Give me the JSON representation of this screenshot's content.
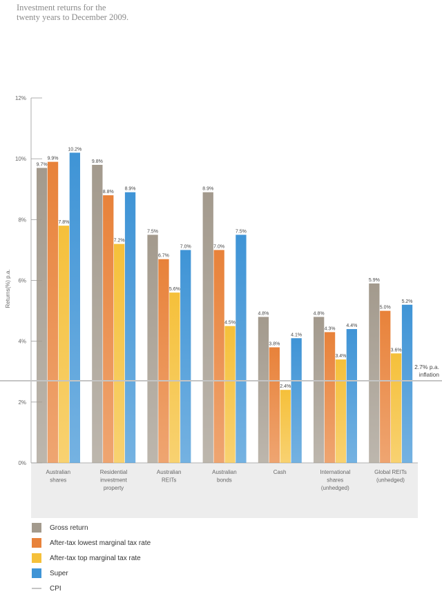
{
  "title": {
    "line1": "Investment returns for the",
    "line2": "twenty years to December 2009."
  },
  "chart_data": {
    "type": "bar",
    "ylabel": "Returns(%) p.a.",
    "ylim": [
      0,
      12
    ],
    "yticks": [
      "0%",
      "2%",
      "4%",
      "6%",
      "8%",
      "10%",
      "12%"
    ],
    "ytick_values": [
      0,
      2,
      4,
      6,
      8,
      10,
      12
    ],
    "categories": [
      [
        "Australian",
        "shares"
      ],
      [
        "Residential",
        "investment",
        "property"
      ],
      [
        "Australian",
        "REITs"
      ],
      [
        "Australian",
        "bonds"
      ],
      [
        "Cash"
      ],
      [
        "International",
        "shares",
        "(unhedged)"
      ],
      [
        "Global REITs",
        "(unhedged)"
      ]
    ],
    "series": [
      {
        "name": "Gross return",
        "color": "#a39a8d",
        "values": [
          9.7,
          9.8,
          7.5,
          8.9,
          4.8,
          4.8,
          5.9
        ],
        "labels": [
          "9.7%",
          "9.8%",
          "7.5%",
          "8.9%",
          "4.8%",
          "4.8%",
          "5.9%"
        ]
      },
      {
        "name": "After-tax lowest marginal tax rate",
        "color": "#e8823a",
        "values": [
          9.9,
          8.8,
          6.7,
          7.0,
          3.8,
          4.3,
          5.0
        ],
        "labels": [
          "9.9%",
          "8.8%",
          "6.7%",
          "7.0%",
          "3.8%",
          "4.3%",
          "5.0%"
        ]
      },
      {
        "name": "After-tax top marginal tax rate",
        "color": "#f5c03a",
        "values": [
          7.8,
          7.2,
          5.6,
          4.5,
          2.4,
          3.4,
          3.6
        ],
        "labels": [
          "7.8%",
          "7.2%",
          "5.6%",
          "4.5%",
          "2.4%",
          "3.4%",
          "3.6%"
        ]
      },
      {
        "name": "Super",
        "color": "#3f94d6",
        "values": [
          10.2,
          8.9,
          7.0,
          7.5,
          4.1,
          4.4,
          5.2
        ],
        "labels": [
          "10.2%",
          "8.9%",
          "7.0%",
          "7.5%",
          "4.1%",
          "4.4%",
          "5.2%"
        ]
      }
    ],
    "cpi": {
      "name": "CPI",
      "value": 2.7,
      "label_line1": "2.7% p.a.",
      "label_line2": "inflation",
      "color": "#c4c4c4"
    },
    "legend_position": "bottom-left"
  }
}
